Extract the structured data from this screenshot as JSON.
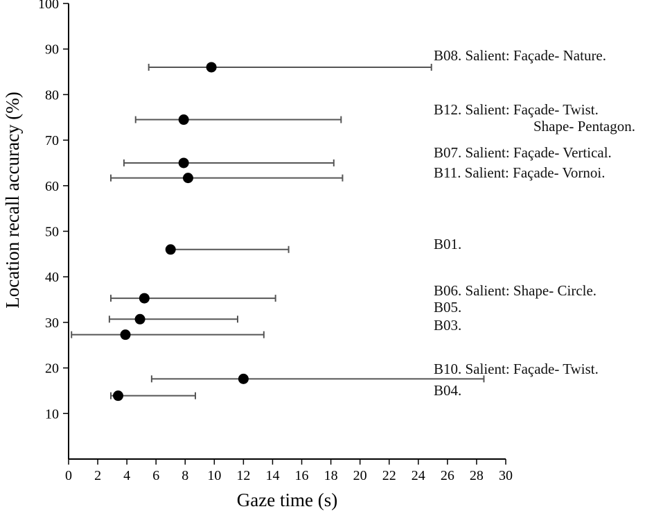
{
  "chart_data": {
    "type": "scatter",
    "xlabel": "Gaze time (s)",
    "ylabel": "Location recall accuracy (%)",
    "xlim": [
      0,
      30
    ],
    "ylim": [
      0,
      100
    ],
    "x_ticks": [
      0,
      2,
      4,
      6,
      8,
      10,
      12,
      14,
      16,
      18,
      20,
      22,
      24,
      26,
      28,
      30
    ],
    "y_ticks": [
      10,
      20,
      30,
      40,
      50,
      60,
      70,
      80,
      90,
      100
    ],
    "grid": false,
    "points": [
      {
        "id": "B08",
        "x": 9.8,
        "y": 86,
        "x_low": 5.5,
        "x_high": 24.9
      },
      {
        "id": "B12",
        "x": 7.9,
        "y": 74.5,
        "x_low": 4.6,
        "x_high": 18.7
      },
      {
        "id": "B07",
        "x": 7.9,
        "y": 65,
        "x_low": 3.8,
        "x_high": 18.2
      },
      {
        "id": "B11",
        "x": 8.2,
        "y": 61.7,
        "x_low": 2.9,
        "x_high": 18.8
      },
      {
        "id": "B01",
        "x": 7.0,
        "y": 46,
        "x_low": 7.0,
        "x_high": 15.1
      },
      {
        "id": "B06",
        "x": 5.2,
        "y": 35.3,
        "x_low": 2.9,
        "x_high": 14.2
      },
      {
        "id": "B05",
        "x": 4.9,
        "y": 30.7,
        "x_low": 2.8,
        "x_high": 11.6
      },
      {
        "id": "B03",
        "x": 3.9,
        "y": 27.3,
        "x_low": 0.2,
        "x_high": 13.4
      },
      {
        "id": "B10",
        "x": 12.0,
        "y": 17.6,
        "x_low": 5.7,
        "x_high": 28.5
      },
      {
        "id": "B04",
        "x": 3.4,
        "y": 13.9,
        "x_low": 2.9,
        "x_high": 8.7
      }
    ],
    "annotations": [
      {
        "id": "B08",
        "lines": [
          "B08. Salient: Façade- Nature."
        ]
      },
      {
        "id": "B12",
        "lines": [
          "B12. Salient: Façade- Twist.",
          "Shape- Pentagon."
        ]
      },
      {
        "id": "B07",
        "lines": [
          "B07. Salient: Façade- Vertical."
        ]
      },
      {
        "id": "B11",
        "lines": [
          "B11. Salient: Façade- Vornoi."
        ]
      },
      {
        "id": "B01",
        "lines": [
          "B01."
        ]
      },
      {
        "id": "B06",
        "lines": [
          "B06. Salient: Shape- Circle."
        ]
      },
      {
        "id": "B05",
        "lines": [
          "B05."
        ]
      },
      {
        "id": "B03",
        "lines": [
          "B03."
        ]
      },
      {
        "id": "B10",
        "lines": [
          "B10. Salient: Façade- Twist."
        ]
      },
      {
        "id": "B04",
        "lines": [
          "B04."
        ]
      }
    ]
  }
}
